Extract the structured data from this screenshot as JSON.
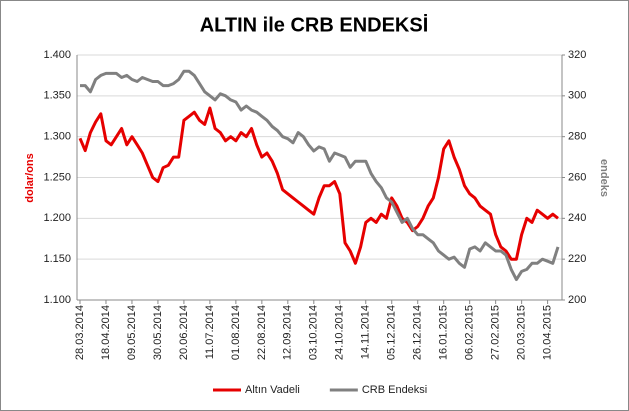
{
  "chart_data": {
    "type": "line",
    "title": "ALTIN ile CRB ENDEKSİ",
    "ylabel": "dolar/ons",
    "y2label": "endeks",
    "categories": [
      "28.03.2014",
      null,
      null,
      null,
      null,
      "18.04.2014",
      null,
      null,
      null,
      null,
      "09.05.2014",
      null,
      null,
      null,
      null,
      "30.05.2014",
      null,
      null,
      null,
      null,
      "20.06.2014",
      null,
      null,
      null,
      null,
      "11.07.2014",
      null,
      null,
      null,
      null,
      "01.08.2014",
      null,
      null,
      null,
      null,
      "22.08.2014",
      null,
      null,
      null,
      null,
      "12.09.2014",
      null,
      null,
      null,
      null,
      "03.10.2014",
      null,
      null,
      null,
      null,
      "24.10.2014",
      null,
      null,
      null,
      null,
      "14.11.2014",
      null,
      null,
      null,
      null,
      "05.12.2014",
      null,
      null,
      null,
      null,
      "26.12.2014",
      null,
      null,
      null,
      null,
      "16.01.2015",
      null,
      null,
      null,
      null,
      "06.02.2015",
      null,
      null,
      null,
      null,
      "27.02.2015",
      null,
      null,
      null,
      null,
      "20.03.2015",
      null,
      null,
      null,
      null,
      "10.04.2015",
      null,
      null
    ],
    "series": [
      {
        "name": "Altın Vadeli",
        "color": "#e60000",
        "axis": "y",
        "values": [
          1.298,
          1.283,
          1.305,
          1.318,
          1.328,
          1.295,
          1.29,
          1.3,
          1.31,
          1.29,
          1.3,
          1.29,
          1.28,
          1.265,
          1.25,
          1.245,
          1.262,
          1.265,
          1.275,
          1.275,
          1.32,
          1.325,
          1.33,
          1.32,
          1.315,
          1.335,
          1.31,
          1.305,
          1.295,
          1.3,
          1.295,
          1.305,
          1.3,
          1.31,
          1.29,
          1.275,
          1.28,
          1.27,
          1.255,
          1.235,
          1.23,
          1.225,
          1.22,
          1.215,
          1.21,
          1.205,
          1.225,
          1.24,
          1.24,
          1.245,
          1.23,
          1.17,
          1.16,
          1.145,
          1.165,
          1.195,
          1.2,
          1.195,
          1.205,
          1.2,
          1.225,
          1.215,
          1.2,
          1.195,
          1.185,
          1.19,
          1.2,
          1.215,
          1.225,
          1.25,
          1.285,
          1.295,
          1.275,
          1.26,
          1.24,
          1.23,
          1.225,
          1.215,
          1.21,
          1.205,
          1.18,
          1.165,
          1.16,
          1.15,
          1.15,
          1.18,
          1.2,
          1.195,
          1.21,
          1.205,
          1.2,
          1.205,
          1.2
        ]
      },
      {
        "name": "CRB Endeksi",
        "color": "#808080",
        "axis": "y2",
        "values": [
          305,
          305,
          302,
          308,
          310,
          311,
          311,
          311,
          309,
          310,
          308,
          307,
          309,
          308,
          307,
          307,
          305,
          305,
          306,
          308,
          312,
          312,
          310,
          306,
          302,
          300,
          298,
          301,
          300,
          298,
          297,
          293,
          295,
          293,
          292,
          290,
          288,
          285,
          283,
          280,
          279,
          277,
          282,
          280,
          276,
          273,
          275,
          274,
          268,
          272,
          271,
          270,
          265,
          268,
          268,
          268,
          262,
          258,
          255,
          250,
          248,
          243,
          238,
          240,
          235,
          232,
          232,
          230,
          228,
          224,
          222,
          220,
          221,
          218,
          216,
          225,
          226,
          224,
          228,
          226,
          224,
          224,
          222,
          215,
          210,
          214,
          215,
          218,
          218,
          220,
          219,
          218,
          226
        ]
      }
    ],
    "ylim": [
      1.1,
      1.4
    ],
    "yticks": [
      {
        "value": 1.1,
        "label": "1.100"
      },
      {
        "value": 1.15,
        "label": "1.150"
      },
      {
        "value": 1.2,
        "label": "1.200"
      },
      {
        "value": 1.25,
        "label": "1.250"
      },
      {
        "value": 1.3,
        "label": "1.300"
      },
      {
        "value": 1.35,
        "label": "1.350"
      },
      {
        "value": 1.4,
        "label": "1.400"
      }
    ],
    "y2lim": [
      200,
      320
    ],
    "y2ticks": [
      200,
      220,
      240,
      260,
      280,
      300,
      320
    ],
    "grid": true,
    "legend": "bottom"
  }
}
